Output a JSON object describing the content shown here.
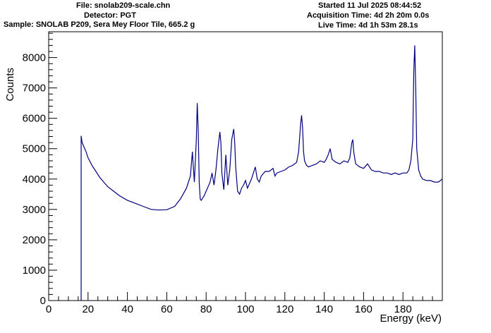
{
  "header": {
    "left": [
      "File: snolab209-scale.chn",
      "Detector: PGT",
      "Sample: SNOLAB P209, Sera Mey Floor Tile, 665.2 g"
    ],
    "right": [
      "Started 11 Jul 2025 08:44:52",
      "Acquisition Time: 4d 2h 20m 0.0s",
      "Live Time: 4d 1h 53m 28.1s"
    ]
  },
  "chart_data": {
    "type": "line",
    "title": "",
    "xlabel": "Energy (keV)",
    "ylabel": "Counts",
    "xlim": [
      0,
      200
    ],
    "ylim": [
      0,
      8850
    ],
    "x_major_ticks": [
      0,
      20,
      40,
      60,
      80,
      100,
      120,
      140,
      160,
      180
    ],
    "x_minor_step": 5,
    "y_major_ticks": [
      0,
      1000,
      2000,
      3000,
      4000,
      5000,
      6000,
      7000,
      8000
    ],
    "y_minor_step": 200,
    "grid": false,
    "line_color": "#000080",
    "threshold_keV": 16.5,
    "series": [
      {
        "x": [
          16.5,
          17,
          18,
          19,
          20,
          22,
          24,
          26,
          28,
          30,
          33,
          36,
          40,
          44,
          48,
          52,
          56,
          60,
          64,
          67,
          70,
          72,
          73,
          74,
          75,
          75.5,
          76,
          76.5,
          77,
          77.5,
          78,
          79,
          80,
          82,
          83,
          84,
          85,
          86,
          87,
          87.5,
          88,
          89,
          90,
          91,
          92,
          93,
          94,
          94.5,
          95,
          96,
          97,
          98,
          99,
          100,
          101,
          103,
          104,
          105,
          106,
          107,
          108,
          110,
          112,
          114,
          115,
          116,
          118,
          120,
          122,
          124,
          126,
          127,
          128,
          128.5,
          129,
          129.5,
          130,
          131,
          132,
          134,
          136,
          138,
          140,
          141,
          142,
          143,
          144,
          146,
          148,
          150,
          152,
          153,
          154,
          154.5,
          155,
          156,
          158,
          160,
          162,
          164,
          166,
          168,
          170,
          172,
          174,
          176,
          178,
          180,
          182,
          183,
          184,
          185,
          185.5,
          186,
          186.5,
          187,
          188,
          189,
          190,
          192,
          194,
          196,
          198,
          200
        ],
        "y": [
          5420,
          5200,
          5050,
          4900,
          4700,
          4450,
          4250,
          4050,
          3900,
          3750,
          3600,
          3450,
          3300,
          3200,
          3100,
          3000,
          2980,
          2990,
          3100,
          3350,
          3700,
          4100,
          4900,
          3900,
          5300,
          6500,
          5600,
          3900,
          3350,
          3300,
          3350,
          3450,
          3600,
          3900,
          4200,
          3800,
          4300,
          5000,
          5550,
          5200,
          4200,
          3650,
          4800,
          3800,
          4300,
          5300,
          5650,
          5200,
          4400,
          3600,
          3500,
          3700,
          3800,
          3950,
          3700,
          4000,
          4200,
          4400,
          4000,
          3900,
          4100,
          4250,
          4250,
          4350,
          4100,
          4200,
          4250,
          4300,
          4400,
          4450,
          4550,
          4900,
          5800,
          6100,
          5700,
          4900,
          4600,
          4450,
          4400,
          4450,
          4500,
          4600,
          4550,
          4650,
          4800,
          5000,
          4650,
          4550,
          4500,
          4600,
          4550,
          4700,
          5200,
          5300,
          4900,
          4500,
          4400,
          4350,
          4500,
          4300,
          4250,
          4250,
          4200,
          4200,
          4150,
          4200,
          4150,
          4200,
          4200,
          4300,
          4600,
          5300,
          7500,
          8400,
          7000,
          5000,
          4300,
          4100,
          4000,
          3950,
          3950,
          3900,
          3900,
          4000
        ]
      }
    ]
  }
}
